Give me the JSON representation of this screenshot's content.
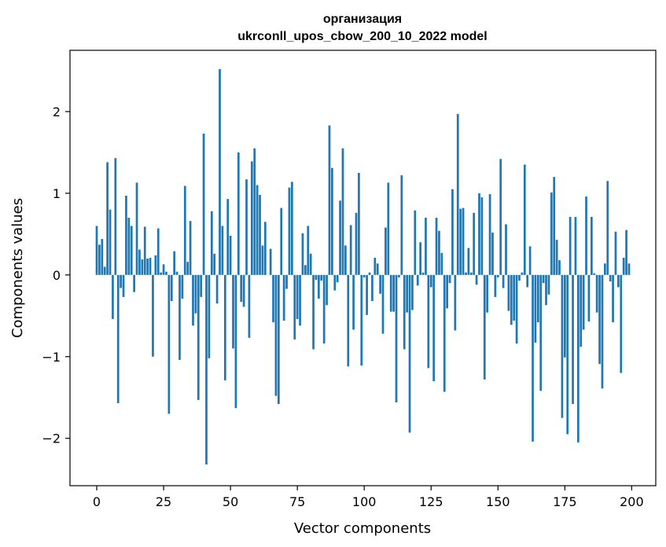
{
  "chart_data": {
    "type": "bar",
    "title": "организация",
    "subtitle": "ukrconll_upos_cbow_200_10_2022 model",
    "xlabel": "Vector components",
    "ylabel": "Components values",
    "xlim": [
      -10,
      209
    ],
    "ylim": [
      -2.58,
      2.75
    ],
    "x_ticks": [
      0,
      25,
      50,
      75,
      100,
      125,
      150,
      175,
      200
    ],
    "y_ticks": [
      -2,
      -1,
      0,
      1,
      2
    ],
    "y_tick_labels": [
      "−2",
      "−1",
      "0",
      "1",
      "2"
    ],
    "bar_color": "#1f77b4",
    "values": [
      0.6,
      0.37,
      0.44,
      0.1,
      1.38,
      0.8,
      -0.54,
      1.43,
      -1.57,
      -0.16,
      -0.27,
      0.97,
      0.7,
      0.6,
      -0.21,
      1.13,
      0.31,
      0.19,
      0.59,
      0.2,
      0.21,
      -1.0,
      0.24,
      0.57,
      0.03,
      0.13,
      0.04,
      -1.7,
      -0.32,
      0.29,
      0.04,
      -1.04,
      -0.29,
      1.09,
      0.16,
      0.66,
      -0.62,
      -0.47,
      -1.53,
      -0.27,
      1.73,
      -2.32,
      -1.02,
      0.78,
      0.26,
      -0.35,
      2.52,
      0.6,
      -1.29,
      0.93,
      0.48,
      -0.9,
      -1.63,
      1.5,
      -0.33,
      -0.39,
      1.17,
      -0.77,
      1.39,
      1.55,
      1.1,
      0.98,
      0.36,
      0.65,
      0.0,
      0.32,
      -0.58,
      -1.48,
      -1.58,
      0.82,
      -0.56,
      -0.17,
      1.07,
      1.14,
      -0.79,
      -0.54,
      -0.62,
      0.51,
      0.12,
      0.6,
      0.26,
      -0.91,
      -0.06,
      -0.29,
      -0.07,
      -0.84,
      -0.37,
      1.83,
      1.31,
      -0.19,
      -0.09,
      0.91,
      1.55,
      0.36,
      -1.12,
      0.61,
      -0.67,
      0.76,
      1.25,
      -1.11,
      -0.03,
      -0.49,
      0.03,
      -0.32,
      0.21,
      0.14,
      -0.23,
      -0.72,
      0.58,
      1.13,
      -0.45,
      -0.45,
      -1.56,
      -0.03,
      1.22,
      -0.91,
      -0.46,
      -1.93,
      -0.43,
      0.79,
      -0.13,
      0.4,
      0.03,
      0.7,
      -1.14,
      -0.15,
      -1.3,
      0.7,
      0.54,
      0.27,
      -1.43,
      -0.41,
      -0.1,
      1.05,
      -0.68,
      1.97,
      0.81,
      0.82,
      0.03,
      0.33,
      0.03,
      0.76,
      -0.12,
      1.0,
      0.95,
      -1.28,
      -0.46,
      0.99,
      0.52,
      -0.27,
      -0.03,
      1.42,
      -0.16,
      0.62,
      -0.44,
      -0.61,
      -0.56,
      -0.84,
      -0.07,
      0.03,
      1.35,
      -0.15,
      0.35,
      -2.04,
      -0.83,
      -0.58,
      -1.42,
      -0.1,
      -0.37,
      -0.24,
      1.01,
      1.2,
      0.43,
      0.18,
      -1.75,
      -1.01,
      -1.95,
      0.71,
      -1.58,
      0.71,
      -2.05,
      -0.88,
      -0.67,
      0.96,
      -0.57,
      0.71,
      0.02,
      -0.46,
      -1.09,
      -1.39,
      0.14,
      1.15,
      -0.08,
      -0.58,
      0.53,
      -0.15,
      -1.2,
      0.21,
      0.55,
      0.14
    ]
  }
}
